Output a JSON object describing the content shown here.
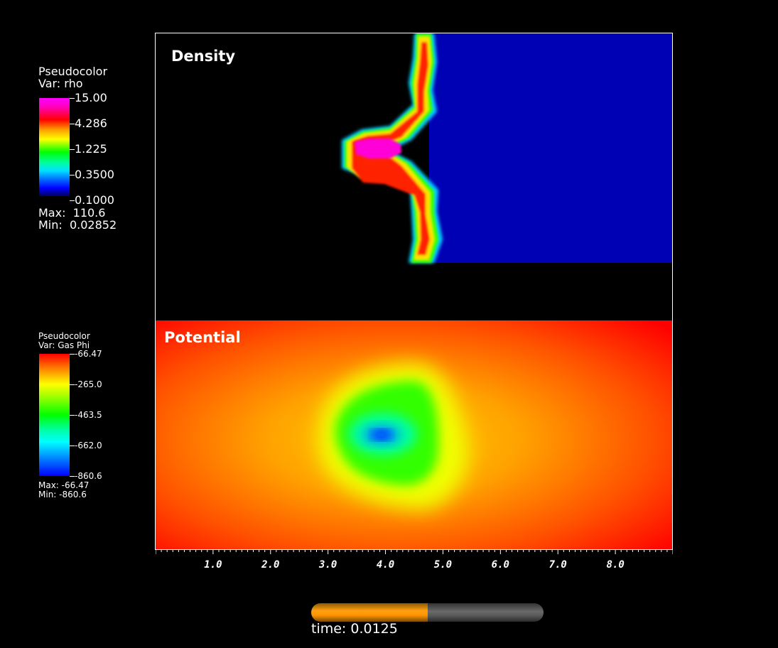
{
  "density_legend": {
    "title": "Pseudocolor",
    "var": "Var: rho",
    "ticks": [
      "15.00",
      "4.286",
      "1.225",
      "0.3500",
      "0.1000"
    ],
    "max": "Max:  110.6",
    "min": "Min:  0.02852"
  },
  "potential_legend": {
    "title": "Pseudocolor",
    "var": "Var: Gas Phi",
    "ticks": [
      "-66.47",
      "-265.0",
      "-463.5",
      "-662.0",
      "-860.6"
    ],
    "max": "Max: -66.47",
    "min": "Min: -860.6"
  },
  "panels": {
    "density_title": "Density",
    "potential_title": "Potential"
  },
  "time": {
    "label": "time: 0.0125",
    "progress": 0.5,
    "fill_color": "#ff9a00",
    "track_color": "#5a5a5a"
  },
  "chart_data": [
    {
      "type": "heatmap",
      "title": "Density",
      "variable": "rho",
      "colorbar_ticks": [
        15.0,
        4.286,
        1.225,
        0.35,
        0.1
      ],
      "colorbar_scale": "log",
      "max": 110.6,
      "min": 0.02852,
      "x_ticks": [
        1.0,
        2.0,
        3.0,
        4.0,
        5.0,
        6.0,
        7.0,
        8.0
      ],
      "colormap": [
        "#0000ff",
        "#00ffff",
        "#00ff00",
        "#ffff00",
        "#ff0000",
        "#ff00ff"
      ]
    },
    {
      "type": "heatmap",
      "title": "Potential",
      "variable": "Gas Phi",
      "colorbar_ticks": [
        -66.47,
        -265.0,
        -463.5,
        -662.0,
        -860.6
      ],
      "max": -66.47,
      "min": -860.6,
      "minimum_location_x": 4.0,
      "x_ticks": [
        1.0,
        2.0,
        3.0,
        4.0,
        5.0,
        6.0,
        7.0,
        8.0
      ],
      "colormap": [
        "#0000ff",
        "#00ffff",
        "#00ff00",
        "#ffff00",
        "#ff0000"
      ]
    }
  ],
  "x_axis": {
    "tick_labels": [
      "1.0",
      "2.0",
      "3.0",
      "4.0",
      "5.0",
      "6.0",
      "7.0",
      "8.0"
    ],
    "range": [
      0.0,
      9.0
    ]
  }
}
